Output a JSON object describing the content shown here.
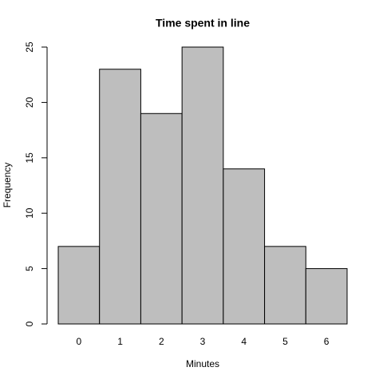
{
  "chart_data": {
    "type": "bar",
    "title": "Time spent in line",
    "x_label": "Minutes",
    "y_label": "Frequency",
    "categories": [
      "0",
      "1",
      "2",
      "3",
      "4",
      "5",
      "6"
    ],
    "values": [
      7,
      23,
      19,
      25,
      14,
      7,
      5
    ],
    "color": "#bebebe",
    "ylim": [
      0,
      25
    ],
    "yticks": [
      0,
      5,
      10,
      15,
      20,
      25
    ],
    "grid": false
  }
}
